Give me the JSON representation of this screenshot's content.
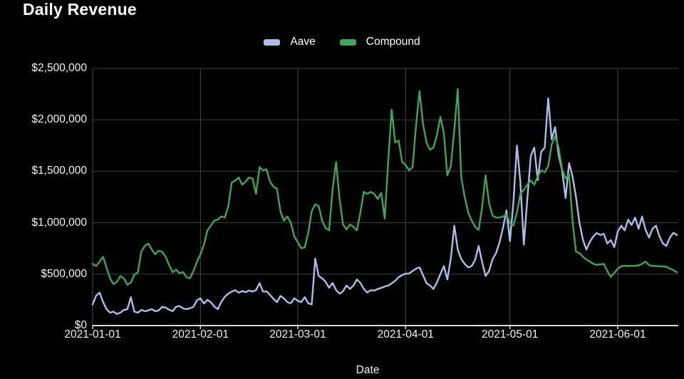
{
  "title": "Daily Revenue",
  "colors": {
    "background": "#000000",
    "grid": "#3f3f3f",
    "month_grid": "#4a4a4a",
    "axis": "#d9d9d9",
    "text": "#f2f2f2",
    "aave": "#aebde7",
    "compound": "#3fa55a"
  },
  "legend": {
    "items": [
      {
        "label": "Aave",
        "color": "#aebde7"
      },
      {
        "label": "Compound",
        "color": "#3fa55a"
      }
    ]
  },
  "chart_data": {
    "type": "line",
    "title": "Daily Revenue",
    "xlabel": "Date",
    "ylabel": "",
    "grid": true,
    "legend_position": "top-center",
    "ylim": [
      0,
      2500000
    ],
    "y_tick_labels": [
      "$0",
      "$500,000",
      "$1,000,000",
      "$1,500,000",
      "$2,000,000",
      "$2,500,000"
    ],
    "y_tick_values": [
      0,
      500000,
      1000000,
      1500000,
      2000000,
      2500000
    ],
    "x_tick_labels": [
      "2021-01-01",
      "2021-02-01",
      "2021-03-01",
      "2021-04-01",
      "2021-05-01",
      "2021-06-01"
    ],
    "x_start_date": "2021-01-01",
    "x_frequency": "daily",
    "series": [
      {
        "name": "Aave",
        "color": "#aebde7",
        "values": [
          205000,
          290000,
          320000,
          230000,
          160000,
          125000,
          135000,
          112000,
          125000,
          152000,
          160000,
          275000,
          135000,
          125000,
          152000,
          140000,
          147000,
          160000,
          140000,
          147000,
          182000,
          175000,
          153000,
          140000,
          182000,
          190000,
          167000,
          160000,
          168000,
          182000,
          245000,
          265000,
          215000,
          250000,
          227000,
          185000,
          160000,
          230000,
          280000,
          310000,
          330000,
          344000,
          320000,
          335000,
          325000,
          340000,
          330000,
          345000,
          413000,
          330000,
          333000,
          299000,
          260000,
          228000,
          288000,
          265000,
          228000,
          217000,
          265000,
          240000,
          228000,
          276000,
          217000,
          206000,
          650000,
          483000,
          460000,
          425000,
          368000,
          414000,
          345000,
          310000,
          333000,
          390000,
          356000,
          390000,
          449000,
          414000,
          355000,
          321000,
          344000,
          340000,
          355000,
          366000,
          380000,
          389000,
          410000,
          435000,
          470000,
          490000,
          505000,
          506000,
          530000,
          553000,
          565000,
          490000,
          413000,
          390000,
          355000,
          420000,
          500000,
          578000,
          449000,
          650000,
          971000,
          739000,
          646000,
          600000,
          565000,
          578000,
          640000,
          774000,
          620000,
          483000,
          530000,
          646000,
          704000,
          808000,
          948000,
          1120000,
          820000,
          1200000,
          1750000,
          1400000,
          787000,
          1230000,
          1650000,
          1730000,
          1415000,
          1690000,
          1730000,
          2210000,
          1810000,
          1930000,
          1660000,
          1510000,
          1240000,
          1580000,
          1450000,
          1250000,
          997000,
          832000,
          739000,
          816000,
          867000,
          900000,
          880000,
          892000,
          797000,
          832000,
          762000,
          913000,
          971000,
          925000,
          1030000,
          978000,
          1050000,
          941000,
          1060000,
          932000,
          855000,
          941000,
          971000,
          866000,
          797000,
          774000,
          855000,
          902000,
          880000
        ]
      },
      {
        "name": "Compound",
        "color": "#3fa55a",
        "values": [
          600000,
          578000,
          622000,
          669000,
          565000,
          460000,
          404000,
          425000,
          481000,
          460000,
          397000,
          418000,
          495000,
          518000,
          718000,
          774000,
          797000,
          739000,
          692000,
          727000,
          718000,
          669000,
          588000,
          518000,
          544000,
          509000,
          520000,
          470000,
          460000,
          530000,
          620000,
          692000,
          785000,
          925000,
          971000,
          1020000,
          1030000,
          1060000,
          1050000,
          1160000,
          1390000,
          1410000,
          1440000,
          1370000,
          1400000,
          1440000,
          1430000,
          1280000,
          1540000,
          1510000,
          1520000,
          1400000,
          1350000,
          1330000,
          1110000,
          1020000,
          1060000,
          1000000,
          866000,
          808000,
          752000,
          760000,
          901000,
          1110000,
          1180000,
          1160000,
          1020000,
          948000,
          925000,
          1320000,
          1590000,
          1240000,
          983000,
          935000,
          983000,
          960000,
          925000,
          1100000,
          1300000,
          1280000,
          1300000,
          1280000,
          1230000,
          1290000,
          1040000,
          1600000,
          2100000,
          1780000,
          1800000,
          1590000,
          1560000,
          1510000,
          1540000,
          1940000,
          2280000,
          1960000,
          1780000,
          1710000,
          1730000,
          1850000,
          2030000,
          1870000,
          1460000,
          1550000,
          1900000,
          2300000,
          1440000,
          1250000,
          1100000,
          1020000,
          960000,
          930000,
          1150000,
          1460000,
          1190000,
          1070000,
          1050000,
          1050000,
          1060000,
          1080000,
          995000,
          972000,
          1100000,
          1280000,
          1320000,
          1370000,
          1410000,
          1370000,
          1450000,
          1510000,
          1490000,
          1550000,
          1760000,
          1840000,
          1730000,
          1520000,
          1430000,
          1470000,
          1020000,
          718000,
          704000,
          669000,
          640000,
          622000,
          600000,
          590000,
          595000,
          599000,
          530000,
          474000,
          510000,
          553000,
          576000,
          580000,
          578000,
          580000,
          582000,
          585000,
          600000,
          622000,
          587000,
          580000,
          578000,
          576000,
          575000,
          572000,
          553000,
          540000,
          518000
        ]
      }
    ]
  }
}
